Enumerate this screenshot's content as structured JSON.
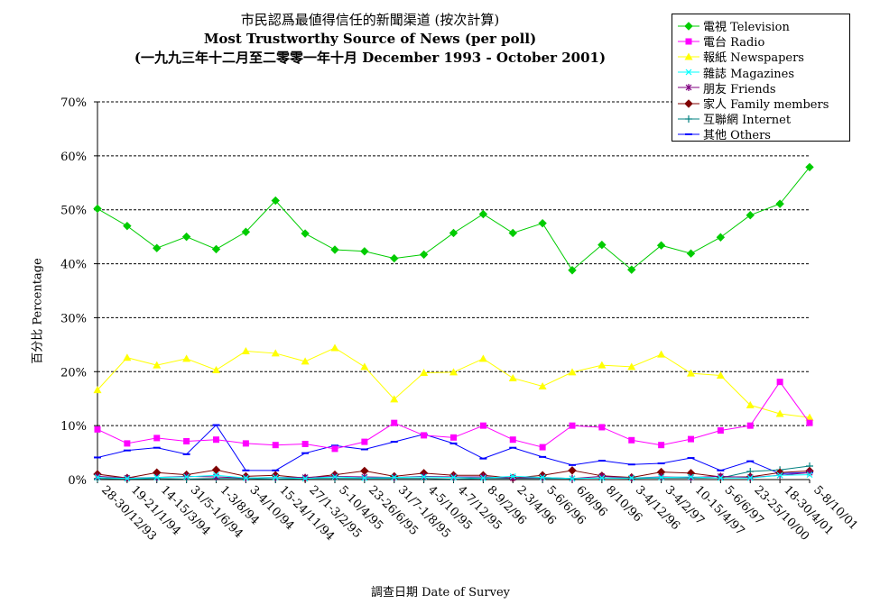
{
  "title": {
    "line1": "市民認爲最値得信任的新聞渠道 (按次計算)",
    "line2": "Most Trustworthy Source of News (per poll)",
    "line3": "(一九九三年十二月至二零零一年十月 December 1993 - October 2001)"
  },
  "colors": {
    "television": "#00cc00",
    "radio": "#ff00ff",
    "newspapers": "#ffff00",
    "magazines": "#00ffff",
    "friends": "#800080",
    "family": "#800000",
    "internet": "#008080",
    "others": "#0000ff"
  },
  "chart_data": {
    "type": "line",
    "xlabel": "調查日期 Date of Survey",
    "ylabel": "百分比 Percentage",
    "ylim": [
      0,
      70
    ],
    "yticks": [
      "0%",
      "10%",
      "20%",
      "30%",
      "40%",
      "50%",
      "60%",
      "70%"
    ],
    "grid": "horizontal-dashed",
    "legend_position": "top-right",
    "categories": [
      "28-30/12/93",
      "19-21/1/94",
      "14-15/3/94",
      "31/5-1/6/94",
      "1-3/8/94",
      "3-4/10/94",
      "15-24/11/94",
      "27/1-3/2/95",
      "5-10/4/95",
      "23-26/6/95",
      "31/7-1/8/95",
      "4-5/10/95",
      "4-7/12/95",
      "8-9/2/96",
      "2-3/4/96",
      "5-6/6/96",
      "6/8/96",
      "8/10/96",
      "3-4/12/96",
      "3-4/2/97",
      "10-15/4/97",
      "5-6/6/97",
      "23-25/10/00",
      "18-30/4/01",
      "5-8/10/01"
    ],
    "series": [
      {
        "name": "電視 Television",
        "color_key": "television",
        "marker": "diamond",
        "values": [
          50.2,
          47.0,
          42.9,
          45.0,
          42.7,
          45.9,
          51.7,
          45.6,
          42.6,
          42.3,
          41.0,
          41.7,
          45.7,
          49.2,
          45.7,
          47.5,
          38.8,
          43.5,
          38.9,
          43.4,
          41.9,
          44.9,
          49.0,
          51.1,
          57.9
        ]
      },
      {
        "name": "電台 Radio",
        "color_key": "radio",
        "marker": "square",
        "values": [
          9.3,
          6.7,
          7.7,
          7.1,
          7.4,
          6.7,
          6.4,
          6.6,
          5.7,
          7.0,
          10.5,
          8.2,
          7.8,
          10.0,
          7.4,
          6.0,
          10.0,
          9.7,
          7.3,
          6.4,
          7.5,
          9.1,
          10.0,
          18.1,
          10.5
        ]
      },
      {
        "name": "報紙 Newspapers",
        "color_key": "newspapers",
        "marker": "triangle",
        "values": [
          16.6,
          22.6,
          21.2,
          22.4,
          20.3,
          23.8,
          23.4,
          21.9,
          24.4,
          20.9,
          14.9,
          19.8,
          19.9,
          22.4,
          18.8,
          17.3,
          19.9,
          21.2,
          20.9,
          23.2,
          19.7,
          19.3,
          13.8,
          12.2,
          11.5
        ]
      },
      {
        "name": "雜誌 Magazines",
        "color_key": "magazines",
        "marker": "x",
        "values": [
          0.4,
          0.2,
          0.4,
          0.5,
          0.8,
          0.3,
          0.4,
          0.2,
          0.5,
          0.3,
          0.4,
          0.5,
          0.4,
          0.3,
          0.6,
          0.4,
          0.2,
          0.3,
          0.3,
          0.4,
          0.5,
          0.3,
          0.3,
          0.8,
          0.9
        ]
      },
      {
        "name": "朋友 Friends",
        "color_key": "friends",
        "marker": "asterisk",
        "values": [
          0.6,
          0.3,
          0.4,
          0.6,
          0.5,
          0.3,
          0.4,
          0.4,
          0.6,
          0.5,
          0.4,
          0.6,
          0.5,
          0.5,
          0.3,
          0.4,
          0.2,
          0.6,
          0.3,
          0.5,
          0.4,
          0.6,
          0.4,
          0.8,
          1.3
        ]
      },
      {
        "name": "家人 Family members",
        "color_key": "family",
        "marker": "diamond",
        "values": [
          1.0,
          0.3,
          1.3,
          0.9,
          1.8,
          0.6,
          0.8,
          0.3,
          0.9,
          1.6,
          0.6,
          1.2,
          0.8,
          0.8,
          0.3,
          0.8,
          1.7,
          0.7,
          0.4,
          1.4,
          1.2,
          0.5,
          0.5,
          1.3,
          1.6
        ]
      },
      {
        "name": "互聯網 Internet",
        "color_key": "internet",
        "marker": "plus",
        "values": [
          0.2,
          0.1,
          0.2,
          0.1,
          0.2,
          0.2,
          0.1,
          0.2,
          0.2,
          0.2,
          0.2,
          0.2,
          0.1,
          0.2,
          0.2,
          0.2,
          0.2,
          0.3,
          0.2,
          0.3,
          0.3,
          0.3,
          1.5,
          1.8,
          2.5
        ]
      },
      {
        "name": "其他 Others",
        "color_key": "others",
        "marker": "dash",
        "values": [
          4.1,
          5.4,
          5.9,
          4.7,
          10.1,
          1.7,
          1.7,
          4.9,
          6.3,
          5.6,
          7.0,
          8.4,
          6.7,
          3.9,
          5.9,
          4.2,
          2.7,
          3.5,
          2.8,
          3.0,
          4.0,
          1.7,
          3.4,
          1.1,
          1.3
        ]
      }
    ]
  }
}
